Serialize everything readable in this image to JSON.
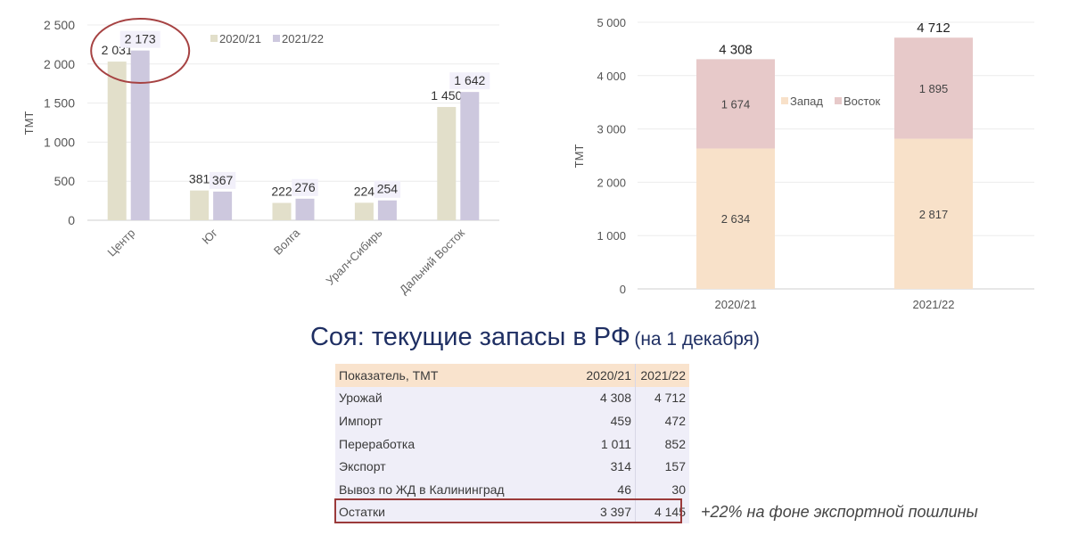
{
  "chart_data": [
    {
      "type": "bar",
      "categories": [
        "Центр",
        "Юг",
        "Волга",
        "Урал+Сибирь",
        "Дальний Восток"
      ],
      "series": [
        {
          "name": "2020/21",
          "values": [
            2031,
            381,
            222,
            224,
            1450
          ],
          "value_labels": [
            "2 031",
            "381",
            "222",
            "224",
            "1 450"
          ]
        },
        {
          "name": "2021/22",
          "values": [
            2173,
            367,
            276,
            254,
            1642
          ],
          "value_labels": [
            "2 173",
            "367",
            "276",
            "254",
            "1 642"
          ]
        }
      ],
      "ylabel": "ТМТ",
      "ylim": [
        0,
        2500
      ],
      "yticks": [
        0,
        500,
        1000,
        1500,
        2000,
        2500
      ],
      "ytick_labels": [
        "0",
        "500",
        "1 000",
        "1 500",
        "2 000",
        "2 500"
      ],
      "grid": true,
      "legend": "top",
      "colors": [
        "#e2dfca",
        "#cdc8de"
      ],
      "highlight": "Центр"
    },
    {
      "type": "bar",
      "stacked": true,
      "categories": [
        "2020/21",
        "2021/22"
      ],
      "series": [
        {
          "name": "Запад",
          "values": [
            2634,
            2817
          ],
          "value_labels": [
            "2 634",
            "2 817"
          ]
        },
        {
          "name": "Восток",
          "values": [
            1674,
            1895
          ],
          "value_labels": [
            "1 674",
            "1 895"
          ]
        }
      ],
      "totals": [
        4308,
        4712
      ],
      "total_labels": [
        "4 308",
        "4 712"
      ],
      "ylabel": "ТМТ",
      "ylim": [
        0,
        5000
      ],
      "yticks": [
        0,
        1000,
        2000,
        3000,
        4000,
        5000
      ],
      "ytick_labels": [
        "0",
        "1 000",
        "2 000",
        "3 000",
        "4 000",
        "5 000"
      ],
      "grid": true,
      "legend": "middle",
      "colors": [
        "#f8e1c9",
        "#e7c9c9"
      ]
    }
  ],
  "title": {
    "main": "Соя: текущие запасы в РФ",
    "sub": "(на 1 декабря)"
  },
  "table": {
    "header": {
      "name": "Показатель, ТМТ",
      "y1": "2020/21",
      "y2": "2021/22"
    },
    "rows": [
      {
        "name": "Урожай",
        "y1": "4 308",
        "y2": "4 712"
      },
      {
        "name": "Импорт",
        "y1": "459",
        "y2": "472"
      },
      {
        "name": "Переработка",
        "y1": "1 011",
        "y2": "852"
      },
      {
        "name": "Экспорт",
        "y1": "314",
        "y2": "157"
      },
      {
        "name": "Вывоз по ЖД в Калининград",
        "y1": "46",
        "y2": "30"
      },
      {
        "name": "Остатки",
        "y1": "3 397",
        "y2": "4 145"
      }
    ]
  },
  "note": "+22% на фоне экспортной пошлины"
}
